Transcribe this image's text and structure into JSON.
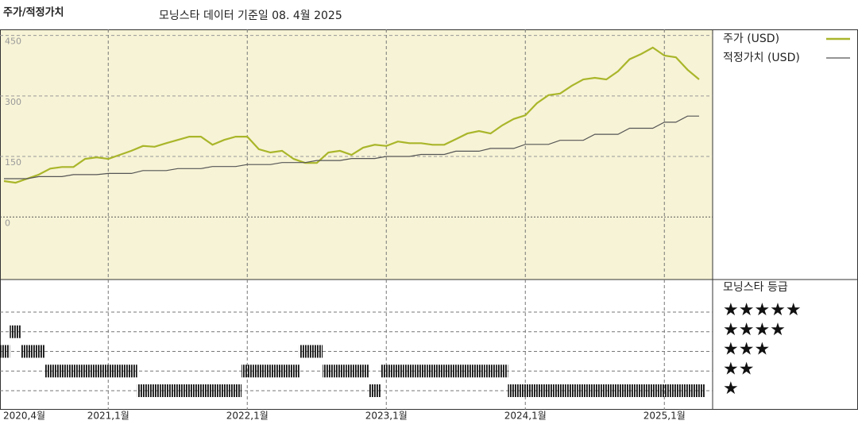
{
  "chart_data": [
    {
      "type": "line",
      "title": "주가/적정가치",
      "subtitle": "모닝스타 데이터 기준일 08. 4월 2025",
      "categories": [
        "2020-04",
        "2020-05",
        "2020-06",
        "2020-07",
        "2020-08",
        "2020-09",
        "2020-10",
        "2020-11",
        "2020-12",
        "2021-01",
        "2021-02",
        "2021-03",
        "2021-04",
        "2021-05",
        "2021-06",
        "2021-07",
        "2021-08",
        "2021-09",
        "2021-10",
        "2021-11",
        "2021-12",
        "2022-01",
        "2022-02",
        "2022-03",
        "2022-04",
        "2022-05",
        "2022-06",
        "2022-07",
        "2022-08",
        "2022-09",
        "2022-10",
        "2022-11",
        "2022-12",
        "2023-01",
        "2023-02",
        "2023-03",
        "2023-04",
        "2023-05",
        "2023-06",
        "2023-07",
        "2023-08",
        "2023-09",
        "2023-10",
        "2023-11",
        "2023-12",
        "2024-01",
        "2024-02",
        "2024-03",
        "2024-04",
        "2024-05",
        "2024-06",
        "2024-07",
        "2024-08",
        "2024-09",
        "2024-10",
        "2024-11",
        "2024-12",
        "2025-01",
        "2025-02",
        "2025-03",
        "2025-04"
      ],
      "series": [
        {
          "name": "주가 (USD)",
          "color": "#a9b62a",
          "values": [
            89,
            85,
            95,
            105,
            120,
            124,
            124,
            144,
            148,
            144,
            154,
            164,
            176,
            174,
            183,
            191,
            199,
            199,
            179,
            191,
            199,
            199,
            168,
            160,
            164,
            144,
            134,
            134,
            160,
            164,
            154,
            172,
            179,
            176,
            187,
            183,
            183,
            179,
            179,
            193,
            207,
            213,
            207,
            227,
            243,
            252,
            282,
            302,
            306,
            325,
            341,
            345,
            341,
            361,
            391,
            404,
            420,
            400,
            396,
            365,
            341
          ]
        },
        {
          "name": "적정가치 (USD)",
          "color": "#555555",
          "values": [
            95,
            95,
            95,
            100,
            100,
            100,
            105,
            105,
            105,
            108,
            108,
            108,
            115,
            115,
            115,
            120,
            120,
            120,
            125,
            125,
            125,
            130,
            130,
            130,
            135,
            135,
            135,
            140,
            140,
            140,
            145,
            145,
            145,
            150,
            150,
            150,
            155,
            155,
            155,
            163,
            163,
            163,
            170,
            170,
            170,
            180,
            180,
            180,
            190,
            190,
            190,
            205,
            205,
            205,
            220,
            220,
            220,
            235,
            235,
            250,
            250
          ]
        }
      ],
      "ylim": [
        -155,
        465
      ],
      "yticks": [
        0,
        150,
        300,
        450
      ],
      "grid": true,
      "xticks": [
        {
          "value": "2020-04",
          "label": "2020,4월"
        },
        {
          "value": "2021-01",
          "label": "2021,1월"
        },
        {
          "value": "2022-01",
          "label": "2022,1월"
        },
        {
          "value": "2023-01",
          "label": "2023,1월"
        },
        {
          "value": "2024-01",
          "label": "2024,1월"
        },
        {
          "value": "2025-01",
          "label": "2025,1월"
        }
      ]
    },
    {
      "type": "rating",
      "title": "모닝스타 등급",
      "categories": [
        "2020-04",
        "2020-05",
        "2020-06",
        "2020-07",
        "2020-08",
        "2020-09",
        "2020-10",
        "2020-11",
        "2020-12",
        "2021-01",
        "2021-02",
        "2021-03",
        "2021-04",
        "2021-05",
        "2021-06",
        "2021-07",
        "2021-08",
        "2021-09",
        "2021-10",
        "2021-11",
        "2021-12",
        "2022-01",
        "2022-02",
        "2022-03",
        "2022-04",
        "2022-05",
        "2022-06",
        "2022-07",
        "2022-08",
        "2022-09",
        "2022-10",
        "2022-11",
        "2022-12",
        "2023-01",
        "2023-02",
        "2023-03",
        "2023-04",
        "2023-05",
        "2023-06",
        "2023-07",
        "2023-08",
        "2023-09",
        "2023-10",
        "2023-11",
        "2023-12",
        "2024-01",
        "2024-02",
        "2024-03",
        "2024-04",
        "2024-05",
        "2024-06",
        "2024-07",
        "2024-08",
        "2024-09",
        "2024-10",
        "2024-11",
        "2024-12",
        "2025-01",
        "2025-02",
        "2025-03",
        "2025-04"
      ],
      "values": [
        3,
        4,
        3,
        3,
        2,
        2,
        2,
        2,
        2,
        2,
        2,
        2,
        1,
        1,
        1,
        1,
        1,
        1,
        1,
        1,
        1,
        2,
        2,
        2,
        2,
        2,
        3,
        3,
        2,
        2,
        2,
        2,
        1,
        2,
        2,
        2,
        2,
        2,
        2,
        2,
        2,
        2,
        2,
        2,
        1,
        1,
        1,
        1,
        1,
        1,
        1,
        1,
        1,
        1,
        1,
        1,
        1,
        1,
        1,
        1,
        1
      ],
      "levels": [
        5,
        4,
        3,
        2,
        1
      ],
      "level_labels": [
        "★★★★★",
        "★★★★",
        "★★★",
        "★★",
        "★"
      ]
    }
  ]
}
